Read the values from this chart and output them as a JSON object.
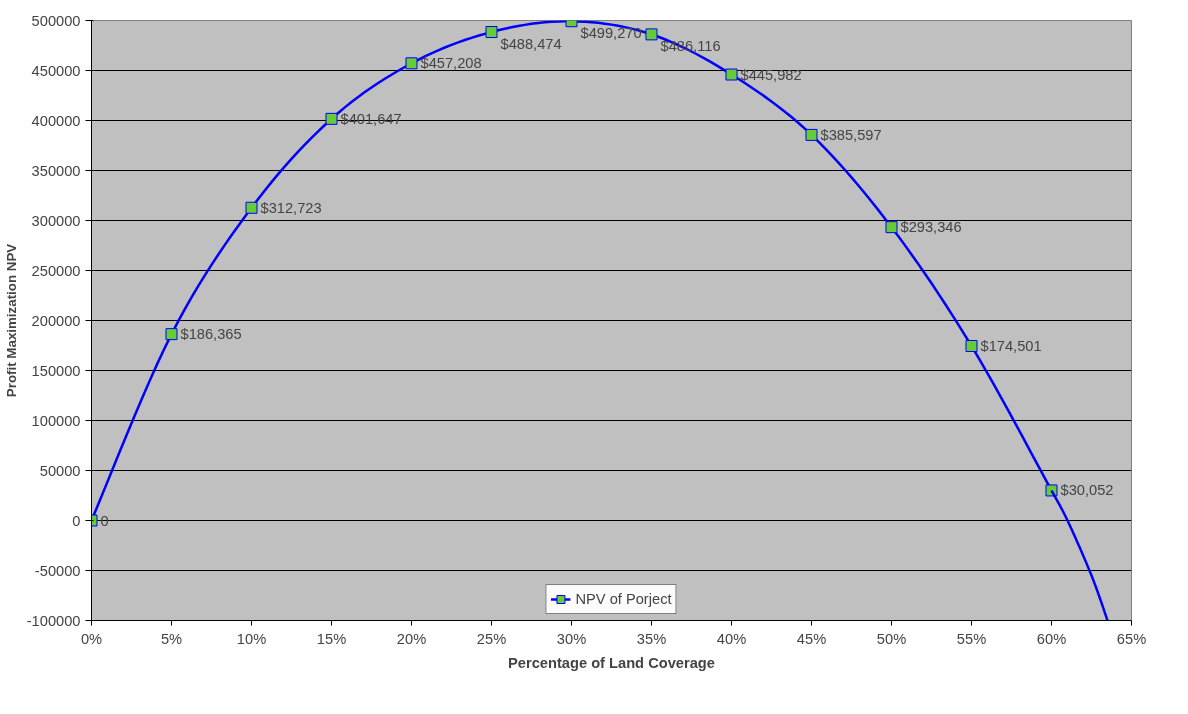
{
  "chart_data": {
    "type": "line",
    "xlabel": "Percentage of Land Coverage",
    "ylabel": "Profit Maximization NPV",
    "xlim": [
      0,
      65
    ],
    "ylim": [
      -100000,
      500000
    ],
    "xticks": [
      {
        "value": 0,
        "label": "0%"
      },
      {
        "value": 5,
        "label": "5%"
      },
      {
        "value": 10,
        "label": "10%"
      },
      {
        "value": 15,
        "label": "15%"
      },
      {
        "value": 20,
        "label": "20%"
      },
      {
        "value": 25,
        "label": "25%"
      },
      {
        "value": 30,
        "label": "30%"
      },
      {
        "value": 35,
        "label": "35%"
      },
      {
        "value": 40,
        "label": "40%"
      },
      {
        "value": 45,
        "label": "45%"
      },
      {
        "value": 50,
        "label": "50%"
      },
      {
        "value": 55,
        "label": "55%"
      },
      {
        "value": 60,
        "label": "60%"
      },
      {
        "value": 65,
        "label": "65%"
      }
    ],
    "yticks": [
      -100000,
      -50000,
      0,
      50000,
      100000,
      150000,
      200000,
      250000,
      300000,
      350000,
      400000,
      450000,
      500000
    ],
    "grid": "y",
    "legend": "bottom",
    "series": [
      {
        "name": "NPV of Porject",
        "color": "#0000ff",
        "marker": "square",
        "x": [
          0,
          5,
          10,
          15,
          20,
          25,
          30,
          35,
          40,
          45,
          50,
          55,
          60
        ],
        "values": [
          0,
          186365,
          312723,
          401647,
          457208,
          488474,
          499270,
          486116,
          445982,
          385597,
          293346,
          174501,
          30052
        ],
        "value_labels": [
          "0",
          "$186,365",
          "$312,723",
          "$401,647",
          "$457,208",
          "$488,474",
          "$499,270",
          "$486,116",
          "$445,982",
          "$385,597",
          "$293,346",
          "$174,501",
          "$30,052"
        ]
      },
      {
        "color": "#0000ff",
        "marker": "none",
        "x": [
          60,
          61,
          62.5,
          63.5
        ],
        "values": [
          30000,
          0,
          -55000,
          -100000
        ]
      }
    ]
  }
}
